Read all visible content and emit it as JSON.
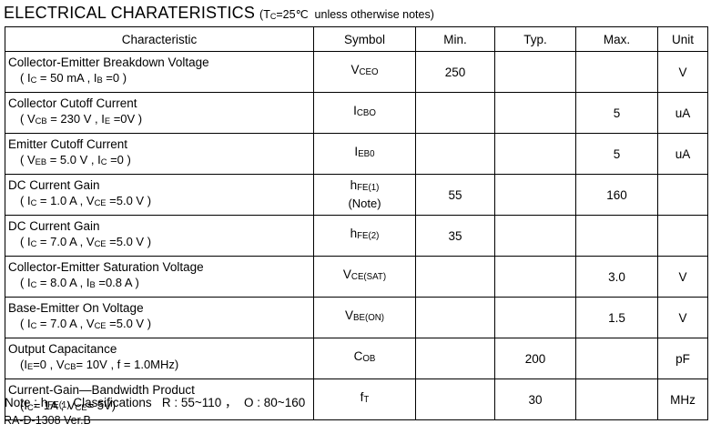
{
  "page": {
    "title": "ELECTRICAL CHARATERISTICS",
    "subtitle": [
      {
        "t": "(T"
      },
      {
        "sub": "C"
      },
      {
        "t": "=25℃  unless otherwise notes)"
      }
    ],
    "note": [
      {
        "t": "Note : h"
      },
      {
        "sub": "FE(1)"
      },
      {
        "t": " Classifications   R : 55~110 ，  O : 80~160"
      }
    ],
    "doc_ref": "RA-D-1308 Ver.B"
  },
  "table": {
    "headers": [
      "Characteristic",
      "Symbol",
      "Min.",
      "Typ.",
      "Max.",
      "Unit"
    ],
    "rows": [
      {
        "name": "Collector-Emitter Breakdown Voltage",
        "condition": [
          {
            "t": "( I"
          },
          {
            "sub": "C"
          },
          {
            "t": " = 50 mA , I"
          },
          {
            "sub": "B"
          },
          {
            "t": " =0 )"
          }
        ],
        "symbol": [
          {
            "t": "V"
          },
          {
            "sub": "CEO"
          }
        ],
        "symbol_note": "",
        "min": "250",
        "typ": "",
        "max": "",
        "unit": "V"
      },
      {
        "name": "Collector Cutoff Current",
        "condition": [
          {
            "t": "( V"
          },
          {
            "sub": "CB"
          },
          {
            "t": " = 230 V , I"
          },
          {
            "sub": "E"
          },
          {
            "t": " =0V )"
          }
        ],
        "symbol": [
          {
            "t": "I"
          },
          {
            "sub": "CBO"
          }
        ],
        "symbol_note": "",
        "min": "",
        "typ": "",
        "max": "5",
        "unit": "uA"
      },
      {
        "name": "Emitter Cutoff Current",
        "condition": [
          {
            "t": "( V"
          },
          {
            "sub": "EB"
          },
          {
            "t": " = 5.0 V , I"
          },
          {
            "sub": "C"
          },
          {
            "t": " =0 )"
          }
        ],
        "symbol": [
          {
            "t": "I"
          },
          {
            "sub": "EB0"
          }
        ],
        "symbol_note": "",
        "min": "",
        "typ": "",
        "max": "5",
        "unit": "uA"
      },
      {
        "name": "DC Current Gain",
        "condition": [
          {
            "t": "( I"
          },
          {
            "sub": "C"
          },
          {
            "t": " = 1.0 A , V"
          },
          {
            "sub": "CE"
          },
          {
            "t": " =5.0 V )"
          }
        ],
        "symbol": [
          {
            "t": "h"
          },
          {
            "sub": "FE(1)"
          }
        ],
        "symbol_note": "(Note)",
        "min": "55",
        "typ": "",
        "max": "160",
        "unit": ""
      },
      {
        "name": "DC Current Gain",
        "condition": [
          {
            "t": "( I"
          },
          {
            "sub": "C"
          },
          {
            "t": " = 7.0 A , V"
          },
          {
            "sub": "CE"
          },
          {
            "t": " =5.0 V )"
          }
        ],
        "symbol": [
          {
            "t": "h"
          },
          {
            "sub": "FE(2)"
          }
        ],
        "symbol_note": "",
        "min": "35",
        "typ": "",
        "max": "",
        "unit": ""
      },
      {
        "name": "Collector-Emitter Saturation Voltage",
        "condition": [
          {
            "t": "( I"
          },
          {
            "sub": "C"
          },
          {
            "t": " = 8.0 A , I"
          },
          {
            "sub": "B"
          },
          {
            "t": " =0.8 A )"
          }
        ],
        "symbol": [
          {
            "t": "V"
          },
          {
            "sub": "CE(SAT)"
          }
        ],
        "symbol_note": "",
        "min": "",
        "typ": "",
        "max": "3.0",
        "unit": "V"
      },
      {
        "name": "Base-Emitter On Voltage",
        "condition": [
          {
            "t": "( I"
          },
          {
            "sub": "C"
          },
          {
            "t": " = 7.0 A , V"
          },
          {
            "sub": "CE"
          },
          {
            "t": " =5.0 V )"
          }
        ],
        "symbol": [
          {
            "t": "V"
          },
          {
            "sub": "BE(ON)"
          }
        ],
        "symbol_note": "",
        "min": "",
        "typ": "",
        "max": "1.5",
        "unit": "V"
      },
      {
        "name": "Output Capacitance",
        "condition": [
          {
            "t": "(I"
          },
          {
            "sub": "E"
          },
          {
            "t": "=0 , V"
          },
          {
            "sub": "CB"
          },
          {
            "t": "= 10V , f = 1.0MHz)"
          }
        ],
        "symbol": [
          {
            "t": "C"
          },
          {
            "sub": "OB"
          }
        ],
        "symbol_note": "",
        "min": "",
        "typ": "200",
        "max": "",
        "unit": "pF"
      },
      {
        "name": "Current-Gain—Bandwidth Product",
        "condition": [
          {
            "t": "(I"
          },
          {
            "sub": "C"
          },
          {
            "t": "= 1A ; V"
          },
          {
            "sub": "CE"
          },
          {
            "t": "= 5V)"
          }
        ],
        "symbol": [
          {
            "t": "f"
          },
          {
            "sub": "T"
          }
        ],
        "symbol_note": "",
        "min": "",
        "typ": "30",
        "max": "",
        "unit": "MHz"
      }
    ]
  }
}
